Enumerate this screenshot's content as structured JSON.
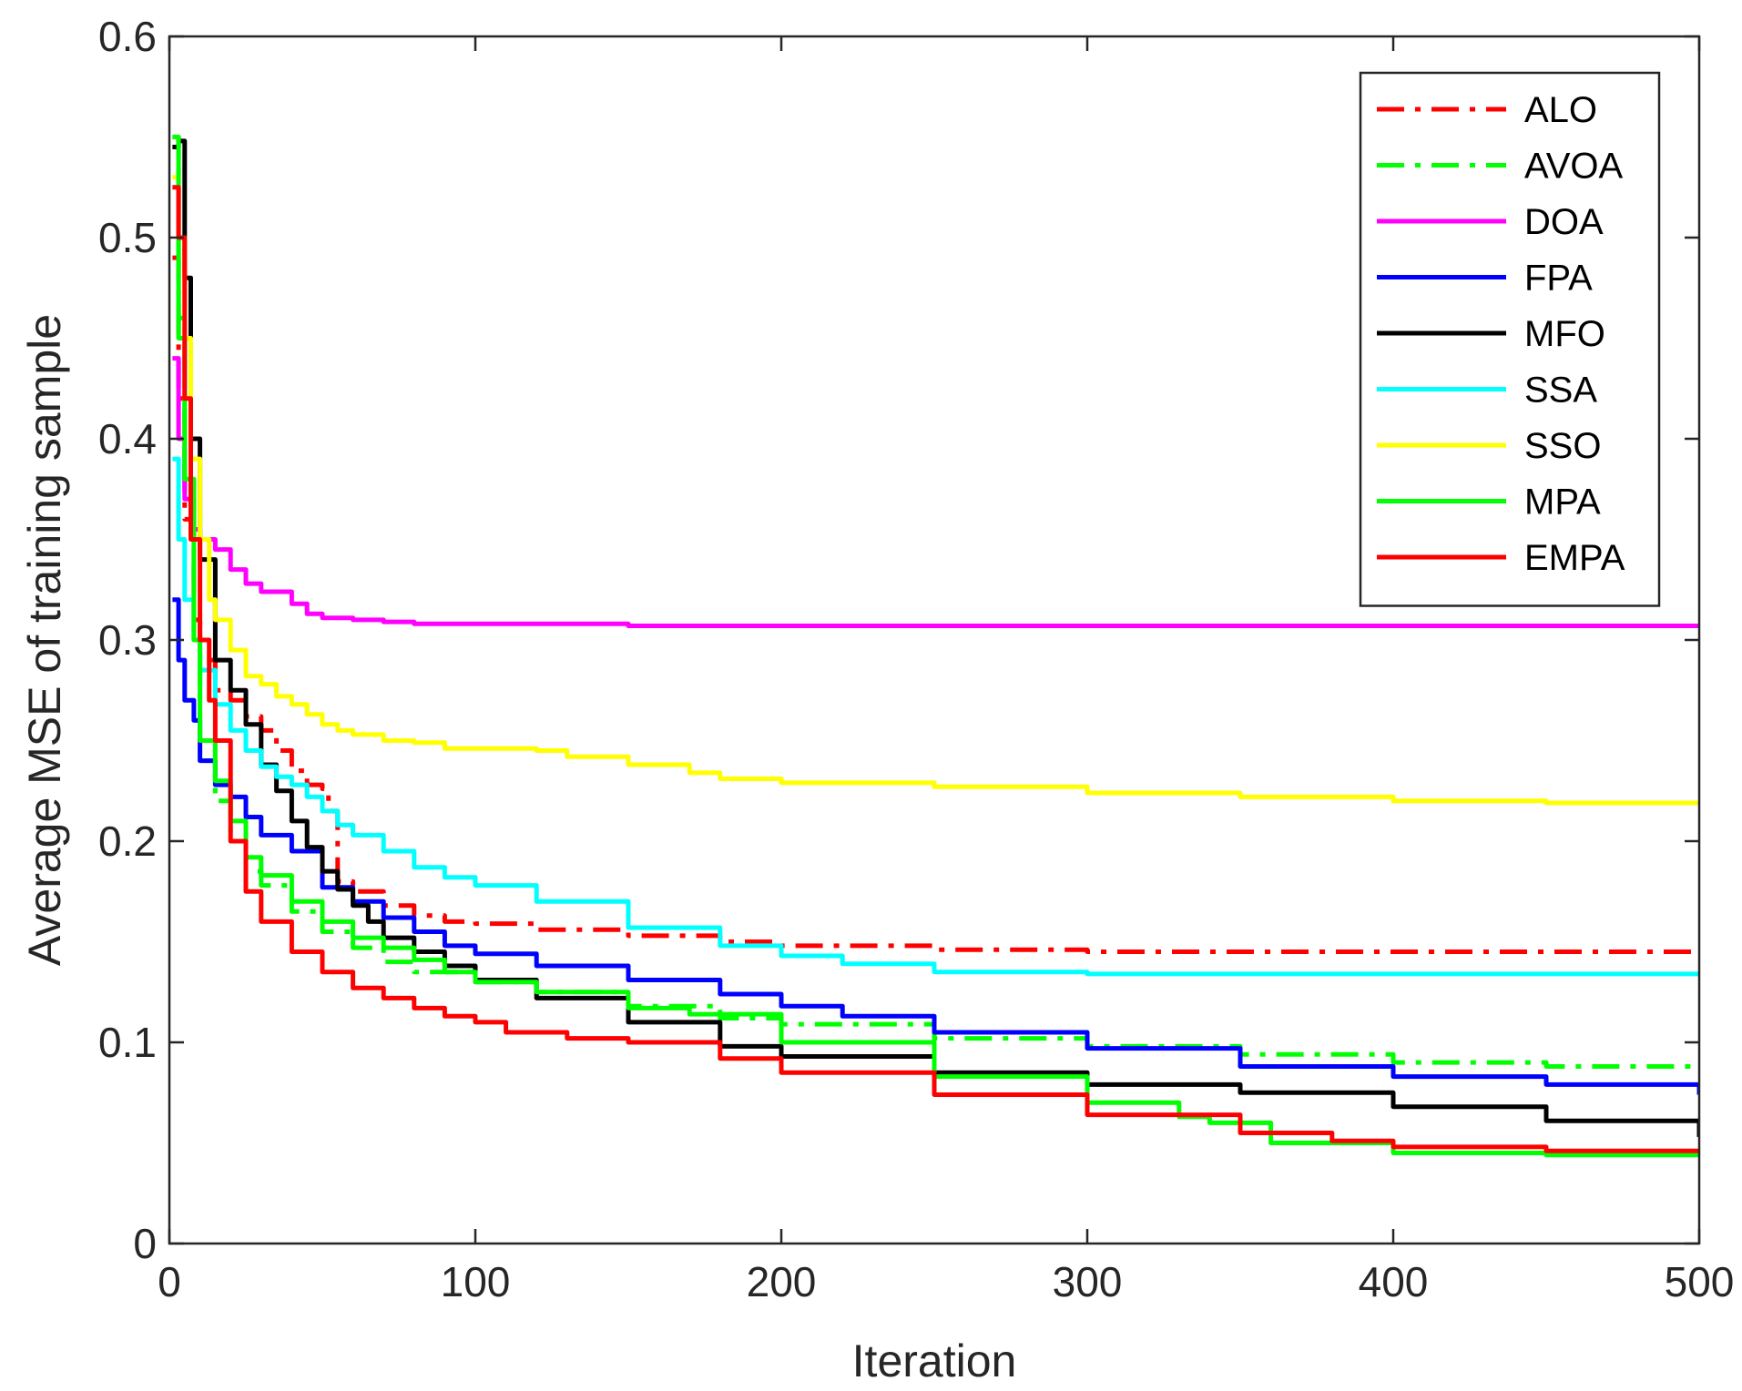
{
  "chart_data": {
    "type": "line",
    "xlabel": "Iteration",
    "ylabel": "Average MSE of training sample",
    "xlim": [
      0,
      500
    ],
    "ylim": [
      0,
      0.6
    ],
    "xticks": [
      0,
      100,
      200,
      300,
      400,
      500
    ],
    "xtick_labels": [
      "0",
      "100",
      "200",
      "300",
      "400",
      "500"
    ],
    "yticks": [
      0,
      0.1,
      0.2,
      0.3,
      0.4,
      0.5,
      0.6
    ],
    "ytick_labels": [
      "0",
      "0.1",
      "0.2",
      "0.3",
      "0.4",
      "0.5",
      "0.6"
    ],
    "grid": false,
    "legend_position": "top-right",
    "series": [
      {
        "name": "ALO",
        "color": "#ff0000",
        "dash": "dashdot",
        "x": [
          1,
          3,
          5,
          8,
          10,
          15,
          20,
          25,
          30,
          35,
          40,
          45,
          50,
          52,
          55,
          60,
          70,
          80,
          90,
          100,
          120,
          150,
          180,
          200,
          250,
          300,
          350,
          400,
          450,
          500
        ],
        "y": [
          0.49,
          0.42,
          0.36,
          0.31,
          0.29,
          0.275,
          0.27,
          0.262,
          0.255,
          0.245,
          0.235,
          0.228,
          0.226,
          0.215,
          0.18,
          0.175,
          0.168,
          0.163,
          0.16,
          0.159,
          0.156,
          0.153,
          0.15,
          0.148,
          0.146,
          0.145,
          0.145,
          0.145,
          0.145,
          0.144
        ]
      },
      {
        "name": "AVOA",
        "color": "#00ff00",
        "dash": "dashdot",
        "x": [
          1,
          3,
          5,
          8,
          10,
          15,
          20,
          25,
          30,
          40,
          50,
          60,
          70,
          80,
          100,
          120,
          150,
          180,
          200,
          250,
          300,
          350,
          400,
          450,
          500
        ],
        "y": [
          0.55,
          0.46,
          0.38,
          0.3,
          0.24,
          0.22,
          0.2,
          0.185,
          0.178,
          0.165,
          0.155,
          0.147,
          0.14,
          0.135,
          0.13,
          0.125,
          0.118,
          0.112,
          0.109,
          0.102,
          0.098,
          0.094,
          0.09,
          0.088,
          0.087
        ]
      },
      {
        "name": "DOA",
        "color": "#ff00ff",
        "dash": "solid",
        "x": [
          1,
          3,
          5,
          8,
          10,
          15,
          20,
          25,
          30,
          40,
          45,
          50,
          60,
          70,
          80,
          100,
          150,
          200,
          250,
          300,
          350,
          400,
          450,
          500
        ],
        "y": [
          0.44,
          0.4,
          0.37,
          0.355,
          0.35,
          0.345,
          0.335,
          0.328,
          0.324,
          0.318,
          0.313,
          0.311,
          0.31,
          0.309,
          0.308,
          0.308,
          0.307,
          0.307,
          0.307,
          0.307,
          0.307,
          0.307,
          0.307,
          0.307
        ]
      },
      {
        "name": "FPA",
        "color": "#0000ff",
        "dash": "solid",
        "x": [
          1,
          3,
          5,
          8,
          10,
          15,
          20,
          25,
          30,
          40,
          50,
          60,
          70,
          80,
          90,
          100,
          120,
          150,
          180,
          200,
          220,
          250,
          300,
          350,
          400,
          450,
          500
        ],
        "y": [
          0.32,
          0.29,
          0.27,
          0.26,
          0.24,
          0.228,
          0.222,
          0.212,
          0.203,
          0.195,
          0.177,
          0.17,
          0.162,
          0.155,
          0.148,
          0.144,
          0.138,
          0.131,
          0.124,
          0.118,
          0.113,
          0.105,
          0.097,
          0.088,
          0.083,
          0.079,
          0.074
        ]
      },
      {
        "name": "MFO",
        "color": "#000000",
        "dash": "solid",
        "x": [
          1,
          3,
          4,
          5,
          7,
          10,
          15,
          20,
          25,
          30,
          35,
          40,
          45,
          50,
          55,
          60,
          65,
          70,
          80,
          90,
          100,
          120,
          150,
          180,
          200,
          250,
          300,
          350,
          400,
          450,
          500
        ],
        "y": [
          0.545,
          0.548,
          0.548,
          0.48,
          0.4,
          0.34,
          0.29,
          0.275,
          0.258,
          0.238,
          0.225,
          0.21,
          0.197,
          0.185,
          0.176,
          0.168,
          0.16,
          0.152,
          0.145,
          0.138,
          0.131,
          0.122,
          0.11,
          0.098,
          0.093,
          0.085,
          0.079,
          0.075,
          0.068,
          0.061,
          0.053
        ]
      },
      {
        "name": "SSA",
        "color": "#00ffff",
        "dash": "solid",
        "x": [
          1,
          3,
          5,
          8,
          10,
          15,
          20,
          25,
          30,
          35,
          40,
          45,
          50,
          55,
          60,
          70,
          80,
          90,
          100,
          120,
          150,
          180,
          200,
          220,
          250,
          300,
          350,
          400,
          450,
          500
        ],
        "y": [
          0.39,
          0.35,
          0.32,
          0.3,
          0.285,
          0.268,
          0.255,
          0.245,
          0.237,
          0.232,
          0.228,
          0.222,
          0.215,
          0.208,
          0.203,
          0.195,
          0.187,
          0.182,
          0.178,
          0.17,
          0.157,
          0.148,
          0.143,
          0.139,
          0.135,
          0.134,
          0.134,
          0.134,
          0.134,
          0.133
        ]
      },
      {
        "name": "SSO",
        "color": "#ffff00",
        "dash": "solid",
        "x": [
          1,
          3,
          5,
          7,
          10,
          13,
          15,
          20,
          25,
          30,
          35,
          40,
          45,
          50,
          55,
          60,
          70,
          80,
          90,
          100,
          120,
          130,
          150,
          170,
          180,
          200,
          250,
          300,
          350,
          400,
          450,
          500
        ],
        "y": [
          0.53,
          0.5,
          0.45,
          0.39,
          0.35,
          0.32,
          0.31,
          0.295,
          0.282,
          0.278,
          0.272,
          0.268,
          0.263,
          0.258,
          0.255,
          0.253,
          0.25,
          0.249,
          0.246,
          0.246,
          0.245,
          0.242,
          0.238,
          0.234,
          0.231,
          0.229,
          0.227,
          0.224,
          0.222,
          0.22,
          0.219,
          0.218
        ]
      },
      {
        "name": "MPA",
        "color": "#00ff00",
        "dash": "solid",
        "x": [
          1,
          3,
          5,
          8,
          10,
          15,
          20,
          25,
          30,
          40,
          50,
          60,
          70,
          80,
          90,
          100,
          120,
          150,
          170,
          200,
          250,
          300,
          330,
          340,
          360,
          400,
          450,
          500
        ],
        "y": [
          0.55,
          0.45,
          0.38,
          0.3,
          0.25,
          0.23,
          0.21,
          0.192,
          0.183,
          0.17,
          0.16,
          0.152,
          0.147,
          0.141,
          0.135,
          0.13,
          0.125,
          0.117,
          0.114,
          0.1,
          0.083,
          0.07,
          0.063,
          0.06,
          0.05,
          0.045,
          0.044,
          0.044
        ]
      },
      {
        "name": "EMPA",
        "color": "#ff0000",
        "dash": "solid",
        "x": [
          1,
          3,
          5,
          7,
          10,
          13,
          15,
          20,
          25,
          30,
          40,
          50,
          60,
          70,
          80,
          90,
          100,
          110,
          130,
          150,
          180,
          200,
          250,
          300,
          350,
          380,
          400,
          450,
          500
        ],
        "y": [
          0.525,
          0.5,
          0.42,
          0.35,
          0.3,
          0.27,
          0.25,
          0.2,
          0.175,
          0.16,
          0.145,
          0.135,
          0.127,
          0.122,
          0.117,
          0.113,
          0.11,
          0.105,
          0.102,
          0.1,
          0.092,
          0.085,
          0.074,
          0.064,
          0.055,
          0.051,
          0.048,
          0.046,
          0.046
        ]
      }
    ]
  }
}
